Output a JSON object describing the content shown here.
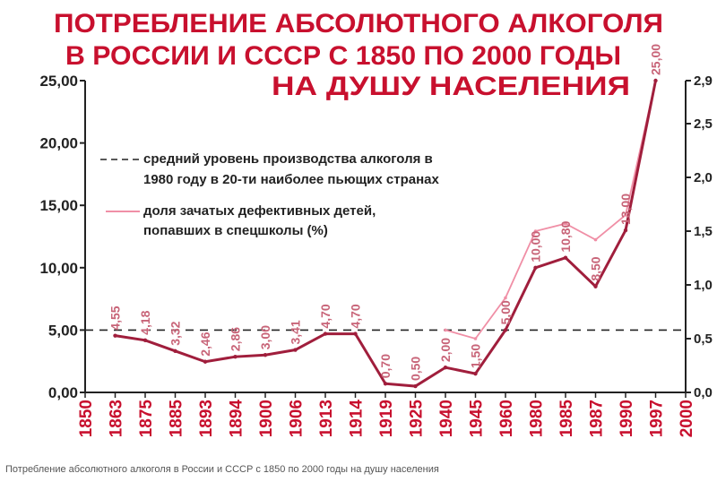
{
  "chart_data": {
    "type": "line",
    "title_lines": [
      "ПОТРЕБЛЕНИЕ  АБСОЛЮТНОГО  АЛКОГОЛЯ",
      "В РОССИИ И СССР С 1850 ПО 2000 ГОДЫ",
      "НА  ДУШУ  НАСЕЛЕНИЯ"
    ],
    "categories": [
      "1850",
      "1863",
      "1875",
      "1885",
      "1893",
      "1894",
      "1900",
      "1906",
      "1913",
      "1914",
      "1919",
      "1925",
      "1940",
      "1945",
      "1960",
      "1980",
      "1985",
      "1987",
      "1990",
      "1997",
      "2000"
    ],
    "y_left": {
      "ticks": [
        "0,00",
        "5,00",
        "10,00",
        "15,00",
        "20,00",
        "25,00"
      ],
      "ylim": [
        0,
        25
      ]
    },
    "y_right": {
      "ticks": [
        "0,0",
        "0,5",
        "1,0",
        "1,5",
        "2,0",
        "2,5",
        "2,9"
      ],
      "ylim": [
        0,
        2.9
      ]
    },
    "series": [
      {
        "axis": "left",
        "color": "#a01e3c",
        "values": [
          null,
          4.55,
          4.18,
          3.32,
          2.46,
          2.86,
          3.0,
          3.41,
          4.7,
          4.7,
          0.7,
          0.5,
          2.0,
          1.5,
          5.0,
          10.0,
          10.8,
          8.5,
          13.0,
          25.0,
          null
        ],
        "labels": [
          null,
          "4,55",
          "4,18",
          "3,32",
          "2,46",
          "2,86",
          "3,00",
          "3,41",
          "4,70",
          "4,70",
          "0,70",
          "0,50",
          "2,00",
          "1,50",
          "5,00",
          "10,00",
          "10,80",
          "8,50",
          "13,00",
          "25,00",
          null
        ]
      },
      {
        "axis": "right",
        "name": "доля зачатых дефективных детей, попавших в спецшколы (%)",
        "color": "#f08fa6",
        "values": [
          null,
          null,
          null,
          null,
          null,
          null,
          null,
          null,
          null,
          null,
          null,
          null,
          0.58,
          0.5,
          0.88,
          1.5,
          1.57,
          1.42,
          1.65,
          2.9,
          null
        ]
      }
    ],
    "reference_line": {
      "value": 5.0,
      "axis": "left",
      "style": "dashed",
      "label": "средний уровень производства алкоголя в 1980 году в 20-ти наиболее пьющих странах"
    },
    "legend": {
      "ref_line_1": "средний  уровень  производства  алкоголя  в",
      "ref_line_2": "1980 году  в 20-ти  наиболее  пьющих  странах",
      "series_line_1": "доля  зачатых  дефективных  детей,",
      "series_line_2": "попавших  в  спецшколы  (%)"
    },
    "grid": false
  },
  "caption": "Потребление абсолютного алкоголя в России и СССР с 1850 по 2000 годы на душу населения"
}
